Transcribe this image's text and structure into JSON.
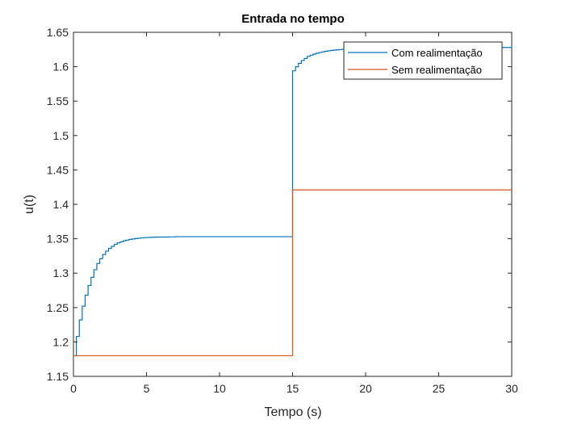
{
  "chart_data": {
    "type": "line",
    "title": "Entrada no tempo",
    "xlabel": "Tempo (s)",
    "ylabel": "u(t)",
    "xlim": [
      0,
      30
    ],
    "ylim": [
      1.15,
      1.65
    ],
    "xticks": [
      0,
      5,
      10,
      15,
      20,
      25,
      30
    ],
    "xtick_labels": [
      "0",
      "5",
      "10",
      "15",
      "20",
      "25",
      "30"
    ],
    "yticks": [
      1.15,
      1.2,
      1.25,
      1.3,
      1.35,
      1.4,
      1.45,
      1.5,
      1.55,
      1.6,
      1.65
    ],
    "ytick_labels": [
      "1.15",
      "1.2",
      "1.25",
      "1.3",
      "1.35",
      "1.4",
      "1.45",
      "1.5",
      "1.55",
      "1.6",
      "1.65"
    ],
    "grid": false,
    "legend_position": "top-right",
    "step_style": true,
    "series": [
      {
        "name": "Com realimentação",
        "color": "#0072BD",
        "x": [
          0,
          0.2,
          0.4,
          0.6,
          0.8,
          1.0,
          1.2,
          1.4,
          1.6,
          1.8,
          2.0,
          2.2,
          2.4,
          2.6,
          2.8,
          3.0,
          3.2,
          3.4,
          3.6,
          3.8,
          4.0,
          4.2,
          4.4,
          4.6,
          4.8,
          5.0,
          5.2,
          5.4,
          5.6,
          5.8,
          6.0,
          6.5,
          7.0,
          15.0,
          15.2,
          15.4,
          15.6,
          15.8,
          16.0,
          16.2,
          16.4,
          16.6,
          16.8,
          17.0,
          17.2,
          17.4,
          17.6,
          17.8,
          18.0,
          18.2,
          18.4,
          18.6,
          18.8,
          19.0,
          19.2,
          19.4,
          19.6,
          19.8,
          20.0,
          20.5,
          21.0,
          22.0,
          30.0
        ],
        "values": [
          1.18,
          1.208,
          1.232,
          1.252,
          1.268,
          1.282,
          1.294,
          1.305,
          1.314,
          1.321,
          1.327,
          1.332,
          1.336,
          1.339,
          1.342,
          1.344,
          1.3455,
          1.347,
          1.348,
          1.349,
          1.3497,
          1.3503,
          1.3508,
          1.3512,
          1.3515,
          1.3518,
          1.352,
          1.3522,
          1.3523,
          1.3524,
          1.3525,
          1.3527,
          1.353,
          1.594,
          1.6,
          1.605,
          1.609,
          1.612,
          1.615,
          1.6168,
          1.6183,
          1.6196,
          1.6207,
          1.6216,
          1.6224,
          1.6231,
          1.6237,
          1.6242,
          1.6246,
          1.625,
          1.6253,
          1.6256,
          1.6258,
          1.626,
          1.6262,
          1.6264,
          1.6266,
          1.6268,
          1.627,
          1.6272,
          1.6275,
          1.628,
          1.63
        ]
      },
      {
        "name": "Sem realimentação",
        "color": "#D95319",
        "x": [
          0,
          15.0,
          30.0
        ],
        "values": [
          1.18,
          1.421,
          1.421
        ]
      }
    ]
  }
}
